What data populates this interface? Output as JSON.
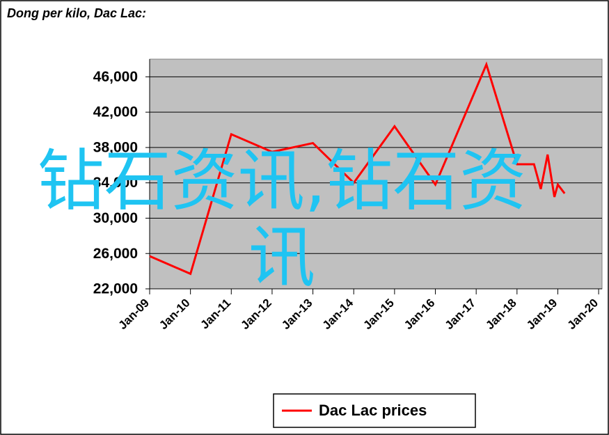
{
  "chart_data": {
    "type": "line",
    "title": "Dong per kilo, Dac Lac:",
    "x": [
      "2009-01",
      "2010-01",
      "2011-01",
      "2012-01",
      "2013-01",
      "2014-01",
      "2015-01",
      "2016-01",
      "2017-04",
      "2018-01",
      "2018-06",
      "2018-08",
      "2018-10",
      "2018-12",
      "2019-01",
      "2019-03"
    ],
    "series": [
      {
        "name": "Dac Lac prices",
        "color": "#ff0000",
        "values": [
          25700,
          23700,
          39500,
          37500,
          38500,
          34000,
          40400,
          33800,
          47400,
          36100,
          36100,
          33300,
          37200,
          32400,
          33800,
          32800
        ]
      }
    ],
    "xlim": [
      "2009-01",
      "2020-02"
    ],
    "xticks": [
      {
        "value": "2009-01",
        "label": "Jan-09"
      },
      {
        "value": "2010-01",
        "label": "Jan-10"
      },
      {
        "value": "2011-01",
        "label": "Jan-11"
      },
      {
        "value": "2012-01",
        "label": "Jan-12"
      },
      {
        "value": "2013-01",
        "label": "Jan-13"
      },
      {
        "value": "2014-01",
        "label": "Jan-14"
      },
      {
        "value": "2015-01",
        "label": "Jan-15"
      },
      {
        "value": "2016-01",
        "label": "Jan-16"
      },
      {
        "value": "2017-01",
        "label": "Jan-17"
      },
      {
        "value": "2018-01",
        "label": "Jan-18"
      },
      {
        "value": "2019-01",
        "label": "Jan-19"
      },
      {
        "value": "2020-01",
        "label": "Jan-20"
      }
    ],
    "ylim": [
      22000,
      48000
    ],
    "yticks": [
      {
        "value": 22000,
        "label": "22,000"
      },
      {
        "value": 26000,
        "label": "26,000"
      },
      {
        "value": 30000,
        "label": "30,000"
      },
      {
        "value": 34000,
        "label": "34,000"
      },
      {
        "value": 38000,
        "label": "38,000"
      },
      {
        "value": 42000,
        "label": "42,000"
      },
      {
        "value": 46000,
        "label": "46,000"
      }
    ],
    "grid": true
  },
  "watermark": "钻石资讯,钻石资讯"
}
